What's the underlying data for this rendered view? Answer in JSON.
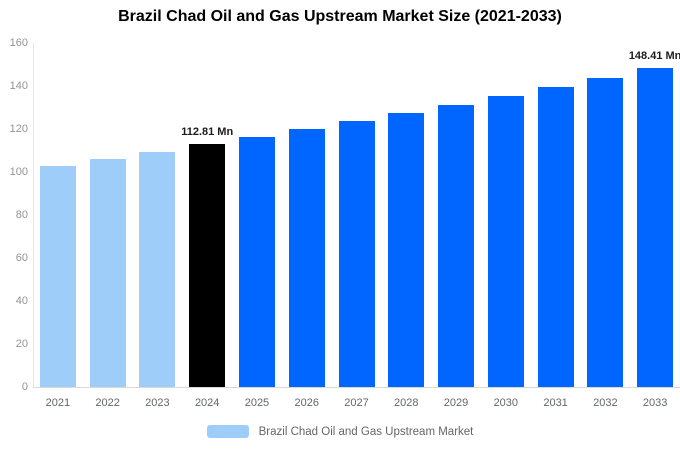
{
  "chart_data": {
    "type": "bar",
    "title": "Brazil Chad Oil and Gas Upstream Market Size (2021-2033)",
    "categories": [
      "2021",
      "2022",
      "2023",
      "2024",
      "2025",
      "2026",
      "2027",
      "2028",
      "2029",
      "2030",
      "2031",
      "2032",
      "2033"
    ],
    "values": [
      102.95,
      106.13,
      109.42,
      112.81,
      116.29,
      119.89,
      123.6,
      127.42,
      131.37,
      135.43,
      139.62,
      143.95,
      148.41
    ],
    "unit": "Mn",
    "xlabel": "",
    "ylabel": "",
    "ylim": [
      0,
      160
    ],
    "yticks": [
      0,
      20,
      40,
      60,
      80,
      100,
      120,
      140,
      160
    ],
    "grid": false,
    "legend_position": "bottom",
    "colors": {
      "historical": "#9ECDFA",
      "highlight": "#000000",
      "forecast": "#0066FF"
    },
    "bar_color_keys": [
      "historical",
      "historical",
      "historical",
      "highlight",
      "forecast",
      "forecast",
      "forecast",
      "forecast",
      "forecast",
      "forecast",
      "forecast",
      "forecast",
      "forecast"
    ],
    "annotations": [
      {
        "category": "2024",
        "text": "112.81 Mn"
      },
      {
        "category": "2033",
        "text": "148.41 Mn"
      }
    ]
  },
  "legend": {
    "label": "Brazil Chad Oil and Gas Upstream Market",
    "swatch_color": "#9ECDFA"
  }
}
